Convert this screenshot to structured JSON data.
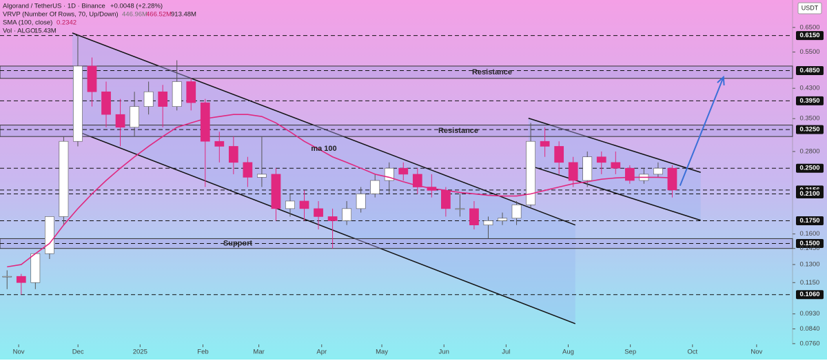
{
  "header": {
    "symbol": "Algorand / TetherUS · 1D · Binance",
    "change": "+0.0048 (+2.28%)",
    "vrvp": "VRVP (Number Of Rows, 70, Up/Down)",
    "vrvp_values": [
      "446.96M",
      "466.52M",
      "913.48M"
    ],
    "sma": "SMA (100, close)",
    "sma_value": "0.2342",
    "vol": "Vol · ALGO",
    "vol_value": "15.43M"
  },
  "currency": "USDT",
  "chart_data": {
    "type": "candlestick",
    "log_scale": true,
    "xlim": [
      0,
      56
    ],
    "ylim": [
      0.0756,
      0.783
    ],
    "xticks": [
      {
        "value": 1.32,
        "label": "Nov"
      },
      {
        "value": 5.51,
        "label": "Dec"
      },
      {
        "value": 9.9,
        "label": "2025"
      },
      {
        "value": 14.34,
        "label": "Feb"
      },
      {
        "value": 18.29,
        "label": "Mar"
      },
      {
        "value": 22.73,
        "label": "Apr"
      },
      {
        "value": 26.98,
        "label": "May"
      },
      {
        "value": 31.37,
        "label": "Jun"
      },
      {
        "value": 35.76,
        "label": "Jul"
      },
      {
        "value": 40.15,
        "label": "Aug"
      },
      {
        "value": 44.54,
        "label": "Sep"
      },
      {
        "value": 48.93,
        "label": "Oct"
      },
      {
        "value": 53.46,
        "label": "Nov"
      }
    ],
    "yticks": [
      {
        "value": 0.65,
        "label": "0.6500"
      },
      {
        "value": 0.55,
        "label": "0.5500"
      },
      {
        "value": 0.43,
        "label": "0.4300"
      },
      {
        "value": 0.35,
        "label": "0.3500"
      },
      {
        "value": 0.28,
        "label": "0.2800"
      },
      {
        "value": 0.16,
        "label": "0.1600"
      },
      {
        "value": 0.145,
        "label": "0.1450"
      },
      {
        "value": 0.13,
        "label": "0.1300"
      },
      {
        "value": 0.115,
        "label": "0.1150"
      },
      {
        "value": 0.093,
        "label": "0.0930"
      },
      {
        "value": 0.084,
        "label": "0.0840"
      },
      {
        "value": 0.076,
        "label": "0.0760"
      }
    ],
    "levels": [
      {
        "value": 0.615,
        "label": "0.6150"
      },
      {
        "value": 0.485,
        "label": "0.4850"
      },
      {
        "value": 0.395,
        "label": "0.3950"
      },
      {
        "value": 0.325,
        "label": "0.3250"
      },
      {
        "value": 0.25,
        "label": "0.2500"
      },
      {
        "value": 0.2156,
        "label": "0.2156"
      },
      {
        "value": 0.21,
        "label": "0.2100"
      },
      {
        "value": 0.175,
        "label": "0.1750"
      },
      {
        "value": 0.15,
        "label": "0.1500"
      },
      {
        "value": 0.106,
        "label": "0.1060"
      }
    ],
    "candles": {
      "up_color": "#ffffff",
      "down_color": "#e0287f",
      "open": [
        0.12,
        0.12,
        0.115,
        0.14,
        0.18,
        0.3,
        0.5,
        0.42,
        0.36,
        0.33,
        0.38,
        0.42,
        0.38,
        0.45,
        0.39,
        0.3,
        0.29,
        0.26,
        0.235,
        0.24,
        0.19,
        0.2,
        0.19,
        0.18,
        0.175,
        0.19,
        0.21,
        0.23,
        0.25,
        0.24,
        0.22,
        0.215,
        0.19,
        0.19,
        0.17,
        0.175,
        0.178,
        0.195,
        0.3,
        0.29,
        0.26,
        0.23,
        0.27,
        0.26,
        0.25,
        0.23,
        0.24,
        0.25
      ],
      "high": [
        0.125,
        0.122,
        0.125,
        0.18,
        0.31,
        0.62,
        0.53,
        0.45,
        0.4,
        0.42,
        0.45,
        0.44,
        0.52,
        0.46,
        0.4,
        0.32,
        0.31,
        0.27,
        0.31,
        0.25,
        0.21,
        0.215,
        0.2,
        0.19,
        0.2,
        0.22,
        0.24,
        0.26,
        0.26,
        0.25,
        0.24,
        0.22,
        0.21,
        0.2,
        0.18,
        0.185,
        0.2,
        0.34,
        0.33,
        0.3,
        0.27,
        0.28,
        0.28,
        0.28,
        0.255,
        0.25,
        0.26,
        0.255
      ],
      "low": [
        0.11,
        0.106,
        0.11,
        0.135,
        0.17,
        0.29,
        0.38,
        0.33,
        0.29,
        0.31,
        0.36,
        0.33,
        0.37,
        0.37,
        0.22,
        0.26,
        0.24,
        0.22,
        0.22,
        0.175,
        0.18,
        0.175,
        0.165,
        0.145,
        0.17,
        0.185,
        0.205,
        0.21,
        0.23,
        0.21,
        0.205,
        0.18,
        0.18,
        0.165,
        0.155,
        0.17,
        0.17,
        0.19,
        0.27,
        0.24,
        0.22,
        0.22,
        0.24,
        0.24,
        0.225,
        0.225,
        0.235,
        0.205
      ],
      "close": [
        0.12,
        0.115,
        0.14,
        0.18,
        0.3,
        0.5,
        0.42,
        0.36,
        0.33,
        0.38,
        0.42,
        0.38,
        0.45,
        0.39,
        0.3,
        0.29,
        0.26,
        0.235,
        0.24,
        0.19,
        0.2,
        0.19,
        0.18,
        0.175,
        0.19,
        0.21,
        0.23,
        0.25,
        0.24,
        0.22,
        0.215,
        0.19,
        0.19,
        0.17,
        0.175,
        0.178,
        0.195,
        0.3,
        0.29,
        0.26,
        0.23,
        0.27,
        0.26,
        0.25,
        0.23,
        0.24,
        0.25,
        0.2156
      ]
    },
    "sma": {
      "color": "#e0287f",
      "values": [
        0.128,
        0.13,
        0.14,
        0.15,
        0.17,
        0.19,
        0.21,
        0.23,
        0.25,
        0.27,
        0.29,
        0.31,
        0.33,
        0.34,
        0.35,
        0.355,
        0.36,
        0.36,
        0.355,
        0.34,
        0.32,
        0.3,
        0.285,
        0.27,
        0.26,
        0.25,
        0.24,
        0.235,
        0.228,
        0.222,
        0.218,
        0.215,
        0.212,
        0.21,
        0.208,
        0.207,
        0.207,
        0.21,
        0.215,
        0.22,
        0.225,
        0.228,
        0.232,
        0.234,
        0.235,
        0.235,
        0.235,
        0.2342
      ]
    },
    "zones": [
      {
        "low": 0.46,
        "high": 0.5,
        "label": "Resistance"
      },
      {
        "low": 0.31,
        "high": 0.335,
        "label": "Resistance"
      },
      {
        "low": 0.145,
        "high": 0.155,
        "label": "Support"
      }
    ],
    "annotations": [
      "ma 100"
    ],
    "channels": [
      {
        "upper": {
          "x": [
            5.11,
            40.65
          ],
          "y": [
            0.626,
            0.17
          ]
        },
        "lower": {
          "x": [
            5.11,
            40.65
          ],
          "y": [
            0.325,
            0.087
          ]
        }
      },
      {
        "upper": {
          "x": [
            37.34,
            49.51
          ],
          "y": [
            0.351,
            0.243
          ]
        },
        "lower": {
          "x": [
            37.34,
            49.51
          ],
          "y": [
            0.255,
            0.1755
          ]
        }
      }
    ],
    "arrow": {
      "x": [
        48.05,
        51.12
      ],
      "y": [
        0.222,
        0.464
      ],
      "color": "#3a6fd8"
    }
  }
}
